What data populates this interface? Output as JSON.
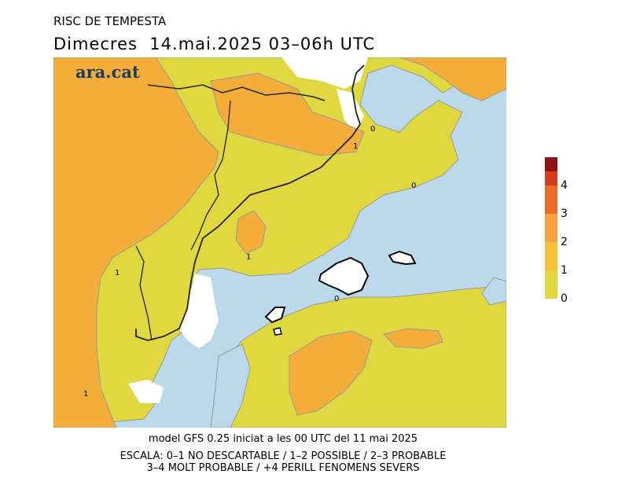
{
  "header": {
    "title": "RISC DE TEMPESTA",
    "subtitle": "Dimecres  14.mai.2025 03–06h UTC"
  },
  "logo": {
    "text": "ara.cat"
  },
  "footer": {
    "line1": "model GFS 0.25 iniciat a les 00 UTC del 11 mai 2025",
    "line2": "ESCALA: 0–1 NO DESCARTABLE / 1–2 POSSIBLE / 2–3 PROBABLE",
    "line3": "3–4 MOLT PROBABLE / +4 PERILL FENOMENS SEVERS"
  },
  "legend": {
    "levels": [
      {
        "from": 0,
        "to": 1,
        "color": "#e0d83f"
      },
      {
        "from": 1,
        "to": 2,
        "color": "#f7c238"
      },
      {
        "from": 2,
        "to": 3,
        "color": "#f5a340"
      },
      {
        "from": 3,
        "to": 4,
        "color": "#ed6b28"
      },
      {
        "from": 4,
        "to": 4.5,
        "color": "#d63b1f"
      },
      {
        "from": 4.5,
        "to": 5,
        "color": "#8c1515"
      }
    ],
    "ticks": [
      "0",
      "1",
      "2",
      "3",
      "4"
    ]
  },
  "map": {
    "colors": {
      "sea": "#bcd9ea",
      "level0": "#e0d83f",
      "level1": "#f5ad3a",
      "no_data": "#ffffff",
      "border": "#222222",
      "contour": "#9a9a9a"
    },
    "contour_labels": [
      "0",
      "0",
      "0",
      "1",
      "1",
      "1",
      "1"
    ]
  }
}
